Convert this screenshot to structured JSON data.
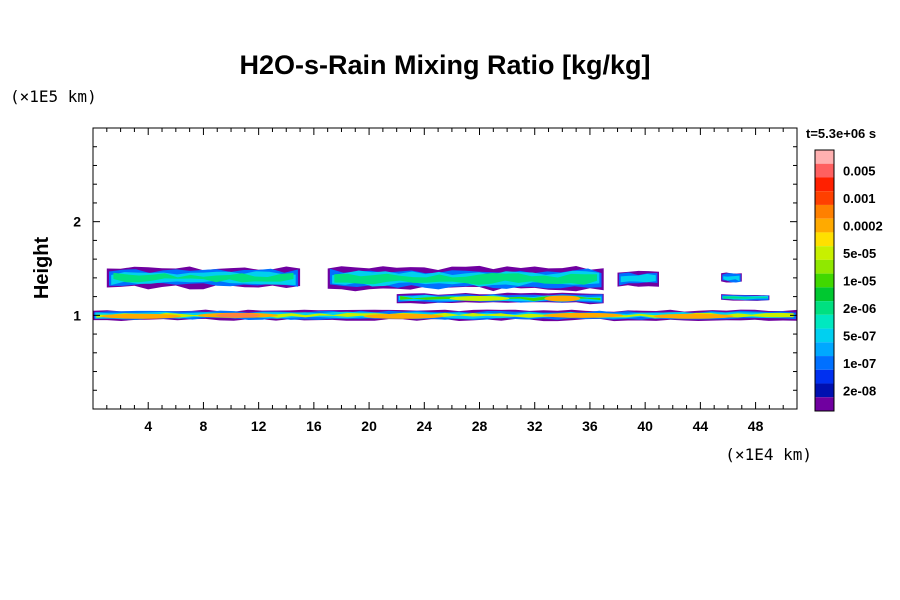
{
  "chart_data": {
    "type": "heatmap",
    "title": "H2O-s-Rain Mixing Ratio [kg/kg]",
    "ylabel": "Height",
    "xunit": "(×1E4 km)",
    "yunit": "(×1E5 km)",
    "time_label": "t=5.3e+06 s",
    "xlim": [
      0,
      51
    ],
    "ylim": [
      0,
      3
    ],
    "x_ticks": [
      4,
      8,
      12,
      16,
      20,
      24,
      28,
      32,
      36,
      40,
      44,
      48
    ],
    "y_ticks": [
      1,
      2
    ],
    "colorbar": {
      "levels": [
        {
          "label": "",
          "color": "#ffb0b0"
        },
        {
          "label": "0.005",
          "color": "#ff6060"
        },
        {
          "label": "",
          "color": "#ff2000"
        },
        {
          "label": "0.001",
          "color": "#ff4000"
        },
        {
          "label": "",
          "color": "#ff8000"
        },
        {
          "label": "0.0002",
          "color": "#ffaa00"
        },
        {
          "label": "",
          "color": "#ffe000"
        },
        {
          "label": "5e-05",
          "color": "#c8f000"
        },
        {
          "label": "",
          "color": "#90e800"
        },
        {
          "label": "1e-05",
          "color": "#40d800"
        },
        {
          "label": "",
          "color": "#00c830"
        },
        {
          "label": "2e-06",
          "color": "#00e080"
        },
        {
          "label": "",
          "color": "#00e8c0"
        },
        {
          "label": "5e-07",
          "color": "#00d0f0"
        },
        {
          "label": "",
          "color": "#00a8ff"
        },
        {
          "label": "1e-07",
          "color": "#0070ff"
        },
        {
          "label": "",
          "color": "#0030f0"
        },
        {
          "label": "2e-08",
          "color": "#0010b0"
        },
        {
          "label": "",
          "color": "#7000a0"
        }
      ]
    },
    "regions": [
      {
        "name": "upper-band-west",
        "x": [
          1,
          15
        ],
        "y": [
          1.3,
          1.5
        ],
        "level": "2e-06"
      },
      {
        "name": "upper-band-center",
        "x": [
          17,
          37
        ],
        "y": [
          1.28,
          1.5
        ],
        "level": "2e-06"
      },
      {
        "name": "upper-band-east",
        "x": [
          38,
          41
        ],
        "y": [
          1.32,
          1.46
        ],
        "level": "5e-07"
      },
      {
        "name": "upper-patch-far-east",
        "x": [
          45.5,
          47
        ],
        "y": [
          1.35,
          1.45
        ],
        "level": "5e-07"
      },
      {
        "name": "mid-band",
        "x": [
          22,
          37
        ],
        "y": [
          1.13,
          1.23
        ],
        "level": "1e-05"
      },
      {
        "name": "mid-patch-east",
        "x": [
          45.5,
          49
        ],
        "y": [
          1.16,
          1.22
        ],
        "level": "2e-06"
      },
      {
        "name": "lower-band",
        "x": [
          0,
          51
        ],
        "y": [
          0.95,
          1.05
        ],
        "level": "5e-05"
      }
    ]
  }
}
